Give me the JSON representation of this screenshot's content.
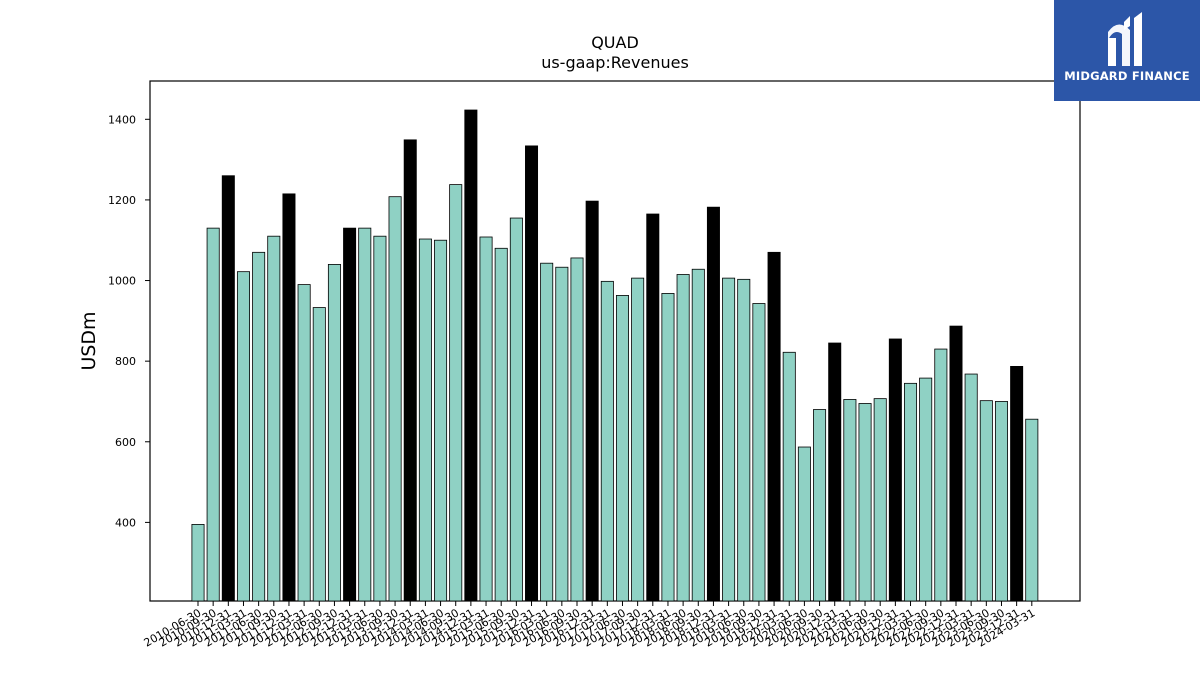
{
  "colors": {
    "normal_bar": "#8fd1c4",
    "fiscal_year_end_bar": "#000000",
    "brand_bg": "#2c56a8",
    "brand_text": "#ffffff"
  },
  "brand": {
    "name": "MIDGARD FINANCE",
    "icon": "midgard-logo-icon"
  },
  "chart_data": {
    "type": "bar",
    "title": "QUAD",
    "subtitle": "us-gaap:Revenues",
    "xlabel": "",
    "ylabel": "USDm",
    "ylim": [
      205,
      1495
    ],
    "yticks": [
      400,
      600,
      800,
      1000,
      1200,
      1400
    ],
    "grid": false,
    "categories": [
      "2010-06-30",
      "2010-09-30",
      "2010-12-31",
      "2011-03-31",
      "2011-06-30",
      "2011-09-30",
      "2011-12-31",
      "2012-03-31",
      "2012-06-30",
      "2012-09-30",
      "2012-12-31",
      "2013-03-31",
      "2013-06-30",
      "2013-09-30",
      "2013-12-31",
      "2014-03-31",
      "2014-06-30",
      "2014-09-30",
      "2014-12-31",
      "2015-03-31",
      "2015-06-30",
      "2015-09-30",
      "2015-12-31",
      "2016-03-31",
      "2016-06-30",
      "2016-09-30",
      "2016-12-31",
      "2017-03-31",
      "2017-06-30",
      "2017-09-30",
      "2017-12-31",
      "2018-03-31",
      "2018-06-30",
      "2018-09-30",
      "2018-12-31",
      "2019-03-31",
      "2019-06-30",
      "2019-09-30",
      "2019-12-31",
      "2020-03-31",
      "2020-06-30",
      "2020-09-30",
      "2020-12-31",
      "2021-03-31",
      "2021-06-30",
      "2021-09-30",
      "2021-12-31",
      "2022-03-31",
      "2022-06-30",
      "2022-09-30",
      "2022-12-31",
      "2023-03-31",
      "2023-06-30",
      "2023-09-30",
      "2023-12-31",
      "2024-03-31"
    ],
    "values": [
      395,
      1130,
      1260,
      1022,
      1070,
      1110,
      1215,
      990,
      933,
      1040,
      1130,
      1130,
      1110,
      1208,
      1349,
      1103,
      1100,
      1238,
      1423,
      1108,
      1080,
      1155,
      1334,
      1043,
      1033,
      1056,
      1197,
      998,
      963,
      1006,
      1165,
      968,
      1015,
      1028,
      1182,
      1006,
      1003,
      943,
      1070,
      822,
      587,
      680,
      845,
      705,
      695,
      707,
      855,
      745,
      758,
      830,
      887,
      768,
      702,
      700,
      787,
      656
    ],
    "highlight_categories": [
      "2010-12-31",
      "2011-12-31",
      "2012-12-31",
      "2013-12-31",
      "2014-12-31",
      "2015-12-31",
      "2016-12-31",
      "2017-12-31",
      "2018-12-31",
      "2019-12-31",
      "2020-12-31",
      "2021-12-31",
      "2022-12-31",
      "2023-12-31"
    ]
  }
}
